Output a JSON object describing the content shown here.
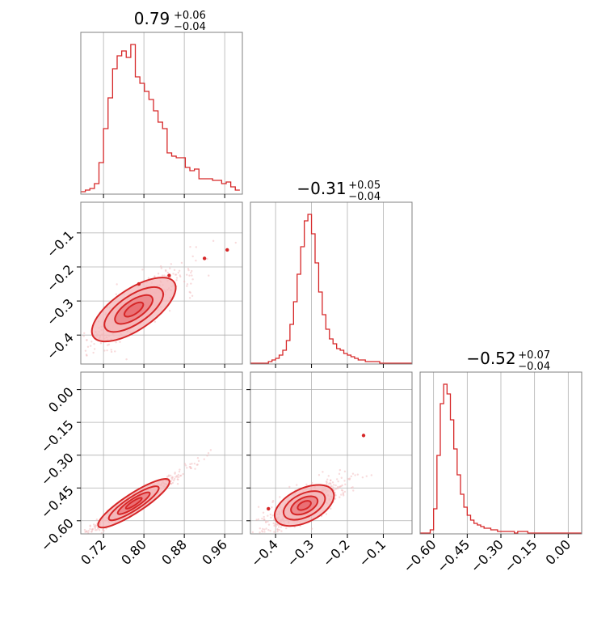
{
  "chart_data": [
    {
      "type": "histogram",
      "panel": "marginal-0",
      "title": {
        "median": "0.79",
        "plus": "+0.06",
        "minus": "−0.04"
      },
      "xlim": [
        0.675,
        0.995
      ],
      "xticks": [
        0.72,
        0.8,
        0.88,
        0.96
      ],
      "xticklabels": [
        "0.72",
        "0.80",
        "0.88",
        "0.96"
      ],
      "show_xticklabels": false,
      "grid": true,
      "bins": [
        0.675,
        0.684,
        0.693,
        0.702,
        0.711,
        0.72,
        0.729,
        0.738,
        0.747,
        0.756,
        0.765,
        0.774,
        0.783,
        0.792,
        0.801,
        0.81,
        0.819,
        0.828,
        0.837,
        0.846,
        0.855,
        0.864,
        0.873,
        0.882,
        0.891,
        0.9,
        0.909,
        0.918,
        0.927,
        0.936,
        0.945,
        0.954,
        0.963,
        0.972,
        0.981,
        0.99
      ],
      "counts": [
        1,
        2,
        3,
        6,
        19,
        40,
        59,
        77,
        85,
        88,
        84,
        92,
        72,
        68,
        63,
        58,
        51,
        44,
        40,
        25,
        23,
        22,
        22,
        16,
        14,
        15,
        9,
        9,
        9,
        8,
        8,
        6,
        7,
        4,
        2
      ]
    },
    {
      "type": "histogram",
      "panel": "marginal-1",
      "title": {
        "median": "−0.31",
        "plus": "+0.05",
        "minus": "−0.04"
      },
      "xlim": [
        -0.47,
        -0.02
      ],
      "xticks": [
        -0.4,
        -0.3,
        -0.2,
        -0.1
      ],
      "xticklabels": [
        "−0.4",
        "−0.3",
        "−0.2",
        "−0.1"
      ],
      "show_xticklabels": false,
      "grid": true,
      "bins": [
        -0.47,
        -0.46,
        -0.45,
        -0.44,
        -0.43,
        -0.42,
        -0.41,
        -0.4,
        -0.39,
        -0.38,
        -0.37,
        -0.36,
        -0.35,
        -0.34,
        -0.33,
        -0.32,
        -0.31,
        -0.3,
        -0.29,
        -0.28,
        -0.27,
        -0.26,
        -0.25,
        -0.24,
        -0.23,
        -0.22,
        -0.21,
        -0.2,
        -0.19,
        -0.18,
        -0.17,
        -0.16,
        -0.15,
        -0.14,
        -0.13,
        -0.12,
        -0.11,
        -0.1,
        -0.09,
        -0.08,
        -0.07,
        -0.06,
        -0.05,
        -0.04,
        -0.03,
        -0.02
      ],
      "counts": [
        0,
        0,
        0,
        0,
        0,
        1,
        2,
        3,
        5,
        8,
        14,
        24,
        38,
        55,
        72,
        88,
        92,
        80,
        62,
        44,
        30,
        21,
        15,
        12,
        9,
        8,
        6,
        5,
        4,
        3,
        2,
        2,
        1,
        1,
        1,
        1,
        0,
        0,
        0,
        0,
        0,
        0,
        0,
        0,
        0
      ]
    },
    {
      "type": "histogram",
      "panel": "marginal-2",
      "title": {
        "median": "−0.52",
        "plus": "+0.07",
        "minus": "−0.04"
      },
      "xlim": [
        -0.66,
        0.06
      ],
      "xticks": [
        -0.6,
        -0.45,
        -0.3,
        -0.15,
        0.0
      ],
      "xticklabels": [
        "−0.60",
        "−0.45",
        "−0.30",
        "−0.15",
        "0.00"
      ],
      "show_xticklabels": true,
      "grid": true,
      "bins": [
        -0.66,
        -0.645,
        -0.63,
        -0.615,
        -0.6,
        -0.585,
        -0.57,
        -0.555,
        -0.54,
        -0.525,
        -0.51,
        -0.495,
        -0.48,
        -0.465,
        -0.45,
        -0.435,
        -0.42,
        -0.405,
        -0.39,
        -0.375,
        -0.36,
        -0.345,
        -0.33,
        -0.315,
        -0.3,
        -0.285,
        -0.27,
        -0.255,
        -0.24,
        -0.225,
        -0.21,
        -0.195,
        -0.18,
        -0.165,
        -0.15,
        -0.135,
        -0.12,
        -0.105,
        -0.09,
        -0.075,
        -0.06,
        -0.045,
        -0.03,
        -0.015,
        0.0,
        0.015,
        0.03,
        0.045,
        0.06
      ],
      "counts": [
        0,
        0,
        0,
        2,
        15,
        48,
        80,
        92,
        86,
        70,
        52,
        36,
        24,
        16,
        11,
        8,
        6,
        5,
        4,
        3,
        3,
        2,
        2,
        1,
        1,
        1,
        1,
        1,
        0,
        1,
        1,
        1,
        0,
        0,
        0,
        0,
        0,
        0,
        0,
        0,
        0,
        0,
        0,
        0,
        0,
        0,
        0,
        0
      ]
    },
    {
      "type": "contour-scatter",
      "panel": "joint-1-0",
      "xlim": [
        0.675,
        0.995
      ],
      "ylim": [
        -0.485,
        -0.01
      ],
      "xticks": [
        0.72,
        0.8,
        0.88,
        0.96
      ],
      "yticks": [
        -0.4,
        -0.3,
        -0.2,
        -0.1
      ],
      "yticklabels": [
        "−0.4",
        "−0.3",
        "−0.2",
        "−0.1"
      ],
      "show_xticklabels": false,
      "grid": true,
      "center": [
        0.78,
        -0.325
      ],
      "slope": 1.0,
      "spread": [
        0.04,
        0.025
      ],
      "points": [
        [
          0.79,
          -0.25
        ],
        [
          0.85,
          -0.225
        ],
        [
          0.92,
          -0.175
        ],
        [
          0.965,
          -0.15
        ]
      ]
    },
    {
      "type": "contour-scatter",
      "panel": "joint-2-0",
      "xlim": [
        0.675,
        0.995
      ],
      "ylim": [
        -0.66,
        0.08
      ],
      "xticks": [
        0.72,
        0.8,
        0.88,
        0.96
      ],
      "xticklabels": [
        "0.72",
        "0.80",
        "0.88",
        "0.96"
      ],
      "yticks": [
        -0.6,
        -0.45,
        -0.3,
        -0.15,
        0.0
      ],
      "yticklabels": [
        "−0.60",
        "−0.45",
        "−0.30",
        "−0.15",
        "0.00"
      ],
      "show_xticklabels": true,
      "grid": true,
      "center": [
        0.78,
        -0.52
      ],
      "slope": 1.5,
      "spread": [
        0.035,
        0.012
      ]
    },
    {
      "type": "contour-scatter",
      "panel": "joint-2-1",
      "xlim": [
        -0.47,
        -0.02
      ],
      "ylim": [
        -0.66,
        0.08
      ],
      "xticks": [
        -0.4,
        -0.3,
        -0.2,
        -0.1
      ],
      "xticklabels": [
        "−0.4",
        "−0.3",
        "−0.2",
        "−0.1"
      ],
      "yticks": [
        -0.6,
        -0.45,
        -0.3,
        -0.15,
        0.0
      ],
      "show_xticklabels": true,
      "grid": true,
      "center": [
        -0.32,
        -0.53
      ],
      "slope": 0.8,
      "spread": [
        0.04,
        0.03
      ],
      "points": [
        [
          -0.155,
          -0.21
        ],
        [
          -0.42,
          -0.545
        ]
      ]
    }
  ],
  "colors": {
    "line": "#d62728",
    "fill": "#f4b6b8",
    "fill_dark": "#e86a6f",
    "scatter": "#f2b8ba",
    "grid": "#b0b0b0",
    "axes": "#808080"
  }
}
